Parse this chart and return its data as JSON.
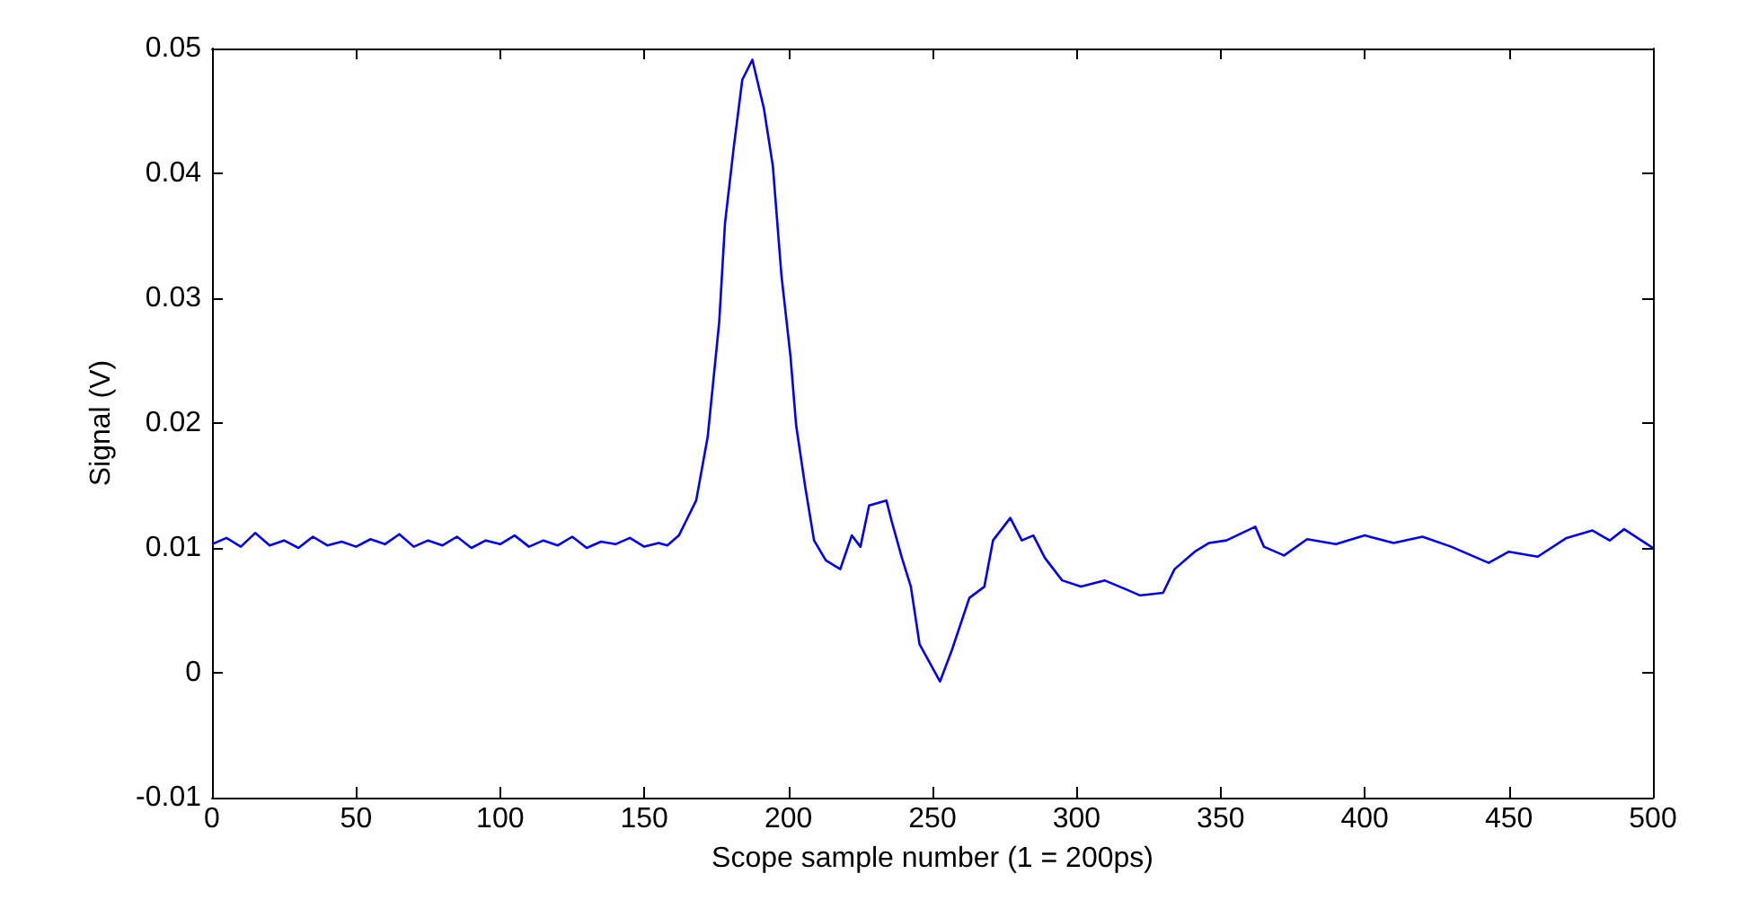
{
  "chart_data": {
    "type": "line",
    "xlabel": "Scope sample number (1 = 200ps)",
    "ylabel": "Signal (V)",
    "xlim": [
      0,
      500
    ],
    "ylim": [
      -0.01,
      0.05
    ],
    "xticks": [
      0,
      50,
      100,
      150,
      200,
      250,
      300,
      350,
      400,
      450,
      500
    ],
    "yticks": [
      -0.01,
      0,
      0.01,
      0.02,
      0.03,
      0.04,
      0.05
    ],
    "marker": "none",
    "line_style": "solid",
    "series": [
      {
        "color": "#0000ff",
        "x": [
          0,
          5,
          10,
          15,
          20,
          25,
          30,
          35,
          40,
          45,
          50,
          55,
          60,
          65,
          70,
          75,
          80,
          85,
          90,
          95,
          100,
          105,
          110,
          115,
          120,
          125,
          130,
          135,
          140,
          145,
          150,
          155,
          158,
          162,
          168,
          172,
          176,
          178,
          181,
          184,
          187.5,
          191.5,
          194.6,
          197.6,
          200.7,
          202.7,
          205.9,
          208.9,
          213,
          218,
          222,
          225,
          228,
          234,
          236,
          239.4,
          242.5,
          245.5,
          252.6,
          256.7,
          262.8,
          268,
          271,
          277,
          281,
          285,
          289,
          295,
          301.5,
          309.7,
          317,
          322,
          330,
          334,
          341,
          346,
          352,
          362,
          365,
          372,
          380,
          390,
          400,
          410,
          420,
          430,
          443,
          450,
          460,
          470,
          479,
          485,
          490,
          498,
          500
        ],
        "values": [
          0.0103,
          0.0108,
          0.0101,
          0.0112,
          0.0102,
          0.0106,
          0.01,
          0.0109,
          0.0102,
          0.0105,
          0.0101,
          0.0107,
          0.0103,
          0.0111,
          0.0101,
          0.0106,
          0.0102,
          0.0109,
          0.01,
          0.0106,
          0.0103,
          0.011,
          0.0101,
          0.0106,
          0.0102,
          0.0109,
          0.01,
          0.0105,
          0.0103,
          0.0108,
          0.0101,
          0.0104,
          0.0102,
          0.011,
          0.0138,
          0.0189,
          0.0281,
          0.036,
          0.042,
          0.0475,
          0.0491,
          0.0452,
          0.0406,
          0.0318,
          0.0254,
          0.0198,
          0.0148,
          0.0106,
          0.009,
          0.0083,
          0.011,
          0.0101,
          0.0134,
          0.0138,
          0.012,
          0.0092,
          0.0069,
          0.0023,
          -0.0007,
          0.0018,
          0.006,
          0.0069,
          0.0106,
          0.0124,
          0.0106,
          0.011,
          0.0092,
          0.0074,
          0.0069,
          0.0074,
          0.0067,
          0.0062,
          0.0064,
          0.0083,
          0.0097,
          0.0104,
          0.0106,
          0.0117,
          0.0101,
          0.0094,
          0.0107,
          0.0103,
          0.011,
          0.0104,
          0.0109,
          0.0101,
          0.0088,
          0.0097,
          0.0093,
          0.0108,
          0.0114,
          0.0106,
          0.0115,
          0.0103,
          0.01
        ]
      }
    ]
  }
}
